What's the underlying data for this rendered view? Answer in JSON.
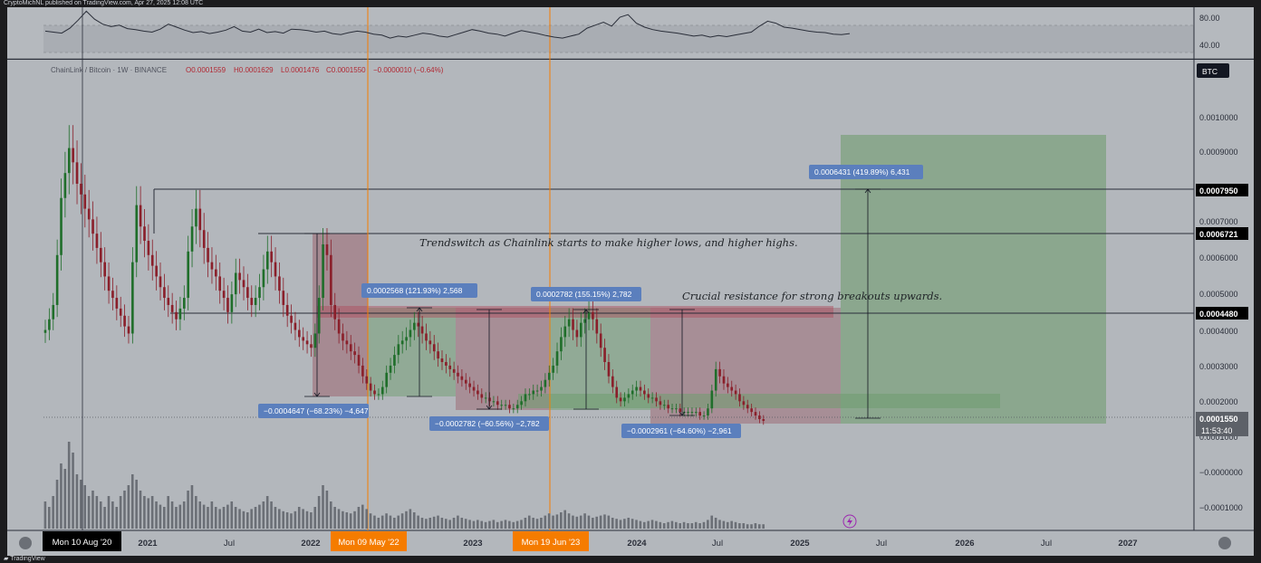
{
  "header": {
    "published": "CryptoMichNL published on TradingView.com, Apr 27, 2025 12:08 UTC",
    "brand": "TradingView"
  },
  "symbol_line": {
    "name": "ChainLink / Bitcoin · 1W · BINANCE",
    "o": "O0.0001559",
    "h": "H0.0001629",
    "l": "L0.0001476",
    "c": "C0.0001550",
    "chg": "−0.0000010 (−0.64%)"
  },
  "rsi_panel": {
    "levels": [
      "80.00",
      "40.00"
    ],
    "upper_band": 70,
    "lower_band": 30,
    "values": [
      52,
      50,
      48,
      58,
      74,
      92,
      76,
      66,
      61,
      64,
      57,
      55,
      52,
      50,
      56,
      66,
      60,
      54,
      49,
      51,
      47,
      50,
      54,
      61,
      52,
      50,
      56,
      49,
      51,
      48,
      56,
      55,
      53,
      50,
      52,
      47,
      45,
      49,
      52,
      50,
      46,
      44,
      38,
      42,
      40,
      44,
      48,
      46,
      42,
      40,
      45,
      50,
      55,
      52,
      48,
      46,
      42,
      48,
      53,
      50,
      47,
      43,
      40,
      38,
      42,
      46,
      58,
      64,
      70,
      62,
      80,
      85,
      68,
      60,
      55,
      52,
      50,
      48,
      45,
      42,
      44,
      40,
      43,
      41,
      44,
      47,
      50,
      62,
      72,
      68,
      60,
      58,
      55,
      52,
      50,
      49,
      46,
      45,
      47
    ]
  },
  "price_scale": {
    "unit_badge": "BTC",
    "ticks": [
      "0.0010000",
      "0.0009000",
      "0.0007000",
      "0.0006000",
      "0.0005000",
      "0.0004000",
      "0.0003000",
      "0.0002000",
      "0.0001000",
      "−0.0000000",
      "−0.0001000"
    ],
    "highlights": [
      {
        "label": "0.0007950",
        "style": "black"
      },
      {
        "label": "0.0006721",
        "style": "black"
      },
      {
        "label": "0.0004480",
        "style": "black"
      },
      {
        "label": "0.0001550",
        "style": "grey"
      }
    ],
    "countdown": "11:53:40"
  },
  "time_scale": {
    "labels": [
      "2021",
      "Jul",
      "2022",
      "2023",
      "2024",
      "Jul",
      "2025",
      "Jul",
      "2026",
      "Jul",
      "2027"
    ],
    "highlights": [
      {
        "label": "Mon 10 Aug '20",
        "style": "black"
      },
      {
        "label": "Mon 09 May '22",
        "style": "orange"
      },
      {
        "label": "Mon 19 Jun '23",
        "style": "orange"
      }
    ]
  },
  "annotations": {
    "trend_text": "Trendswitch as Chainlink starts to make higher lows, and higher highs.",
    "resistance_text": "Crucial resistance for strong breakouts upwards.",
    "measures": [
      {
        "label": "−0.0004647 (−68.23%) −4,647",
        "direction": "down"
      },
      {
        "label": "0.0002568 (121.93%) 2,568",
        "direction": "up"
      },
      {
        "label": "−0.0002782 (−60.56%) −2,782",
        "direction": "down"
      },
      {
        "label": "0.0002782 (155.15%) 2,782",
        "direction": "up"
      },
      {
        "label": "−0.0002961 (−64.60%) −2,961",
        "direction": "down"
      },
      {
        "label": "0.0006431 (419.89%) 6,431",
        "direction": "up"
      }
    ]
  },
  "chart_data": {
    "type": "candlestick",
    "symbol": "ChainLink / Bitcoin",
    "interval": "1W",
    "exchange": "BINANCE",
    "horizontal_levels": [
      0.000795,
      0.0006721,
      0.000448,
      0.000155
    ],
    "vertical_markers": [
      "Mon 10 Aug '20",
      "Mon 09 May '22",
      "Mon 19 Jun '23"
    ],
    "closes": [
      0.00041,
      0.00044,
      0.00048,
      0.00062,
      0.00078,
      0.00085,
      0.00092,
      0.00088,
      0.00082,
      0.00079,
      0.00075,
      0.00072,
      0.00068,
      0.00064,
      0.0006,
      0.00056,
      0.00052,
      0.0005,
      0.00047,
      0.00045,
      0.00042,
      0.0004,
      0.0006,
      0.00076,
      0.0007,
      0.00066,
      0.00062,
      0.00059,
      0.00056,
      0.00053,
      0.0005,
      0.00048,
      0.00046,
      0.00044,
      0.00047,
      0.0005,
      0.00063,
      0.0007,
      0.00075,
      0.00069,
      0.00064,
      0.0006,
      0.00058,
      0.00056,
      0.00052,
      0.0005,
      0.00046,
      0.00051,
      0.00057,
      0.00055,
      0.00053,
      0.0005,
      0.00048,
      0.0005,
      0.00053,
      0.00058,
      0.00063,
      0.0006,
      0.00056,
      0.00052,
      0.00048,
      0.00045,
      0.00043,
      0.00041,
      0.00039,
      0.00038,
      0.00037,
      0.00036,
      0.0004,
      0.0005,
      0.00065,
      0.00062,
      0.00048,
      0.00044,
      0.0004,
      0.00038,
      0.00037,
      0.00035,
      0.00034,
      0.00031,
      0.00028,
      0.00026,
      0.00024,
      0.00023,
      0.00023,
      0.00025,
      0.00029,
      0.00031,
      0.00034,
      0.00037,
      0.00038,
      0.00039,
      0.00041,
      0.00043,
      0.00042,
      0.0004,
      0.00038,
      0.00037,
      0.00035,
      0.00033,
      0.00032,
      0.00031,
      0.0003,
      0.00029,
      0.00028,
      0.00027,
      0.00026,
      0.00025,
      0.00024,
      0.00023,
      0.00022,
      0.00022,
      0.00021,
      0.00021,
      0.0002,
      0.0002,
      0.0002,
      0.00019,
      0.00019,
      0.0002,
      0.00021,
      0.00023,
      0.00023,
      0.00024,
      0.00024,
      0.00025,
      0.00027,
      0.00029,
      0.00031,
      0.00035,
      0.00039,
      0.00042,
      0.00044,
      0.00041,
      0.00039,
      0.00043,
      0.00044,
      0.00046,
      0.00044,
      0.0004,
      0.00036,
      0.00032,
      0.00028,
      0.00025,
      0.00022,
      0.00021,
      0.00022,
      0.00023,
      0.00024,
      0.00025,
      0.00024,
      0.00023,
      0.00022,
      0.00022,
      0.00021,
      0.0002,
      0.0002,
      0.00019,
      0.00019,
      0.00019,
      0.00018,
      0.00018,
      0.00018,
      0.00018,
      0.00018,
      0.00017,
      0.00017,
      0.00019,
      0.00024,
      0.0003,
      0.00028,
      0.00026,
      0.00025,
      0.00024,
      0.00023,
      0.00021,
      0.0002,
      0.00019,
      0.00018,
      0.00017,
      0.00016,
      0.000155
    ],
    "volume_rel": [
      0.25,
      0.2,
      0.3,
      0.45,
      0.6,
      0.55,
      0.8,
      0.7,
      0.5,
      0.45,
      0.4,
      0.3,
      0.35,
      0.3,
      0.25,
      0.2,
      0.3,
      0.25,
      0.2,
      0.3,
      0.35,
      0.4,
      0.5,
      0.45,
      0.35,
      0.3,
      0.28,
      0.3,
      0.25,
      0.22,
      0.2,
      0.3,
      0.25,
      0.2,
      0.22,
      0.25,
      0.35,
      0.4,
      0.3,
      0.25,
      0.22,
      0.2,
      0.25,
      0.2,
      0.18,
      0.2,
      0.22,
      0.25,
      0.2,
      0.18,
      0.16,
      0.15,
      0.18,
      0.2,
      0.22,
      0.25,
      0.3,
      0.25,
      0.2,
      0.18,
      0.16,
      0.15,
      0.14,
      0.16,
      0.2,
      0.18,
      0.16,
      0.15,
      0.2,
      0.3,
      0.4,
      0.35,
      0.25,
      0.2,
      0.18,
      0.16,
      0.15,
      0.14,
      0.16,
      0.2,
      0.22,
      0.18,
      0.14,
      0.12,
      0.1,
      0.12,
      0.14,
      0.12,
      0.1,
      0.12,
      0.14,
      0.16,
      0.18,
      0.15,
      0.12,
      0.1,
      0.09,
      0.1,
      0.11,
      0.12,
      0.1,
      0.09,
      0.08,
      0.1,
      0.12,
      0.1,
      0.09,
      0.08,
      0.07,
      0.08,
      0.07,
      0.06,
      0.07,
      0.08,
      0.06,
      0.07,
      0.08,
      0.07,
      0.06,
      0.07,
      0.08,
      0.1,
      0.12,
      0.1,
      0.09,
      0.1,
      0.12,
      0.14,
      0.12,
      0.13,
      0.15,
      0.17,
      0.14,
      0.12,
      0.11,
      0.12,
      0.14,
      0.12,
      0.1,
      0.11,
      0.12,
      0.13,
      0.12,
      0.1,
      0.09,
      0.08,
      0.09,
      0.1,
      0.09,
      0.08,
      0.07,
      0.06,
      0.07,
      0.08,
      0.07,
      0.06,
      0.05,
      0.06,
      0.07,
      0.06,
      0.05,
      0.06,
      0.05,
      0.05,
      0.06,
      0.05,
      0.06,
      0.08,
      0.12,
      0.1,
      0.08,
      0.07,
      0.06,
      0.07,
      0.06,
      0.05,
      0.05,
      0.04,
      0.04,
      0.05,
      0.04,
      0.04
    ]
  }
}
